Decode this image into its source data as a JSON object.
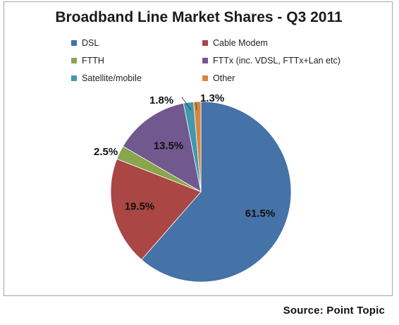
{
  "chart_data": {
    "type": "pie",
    "title": "Broadband Line Market Shares  - Q3 2011",
    "categories": [
      "DSL",
      "Cable Modem",
      "FTTH",
      "FTTx (inc. VDSL, FTTx+Lan etc)",
      "Satellite/mobile",
      "Other"
    ],
    "values": [
      61.5,
      19.5,
      2.5,
      13.5,
      1.8,
      1.3
    ],
    "value_labels": [
      "61.5%",
      "19.5%",
      "2.5%",
      "13.5%",
      "1.8%",
      "1.3%"
    ],
    "colors": [
      "#4572a7",
      "#aa4643",
      "#89a54e",
      "#71588f",
      "#4198af",
      "#db843d"
    ],
    "legend_position": "top"
  },
  "source": "Source: Point Topic"
}
